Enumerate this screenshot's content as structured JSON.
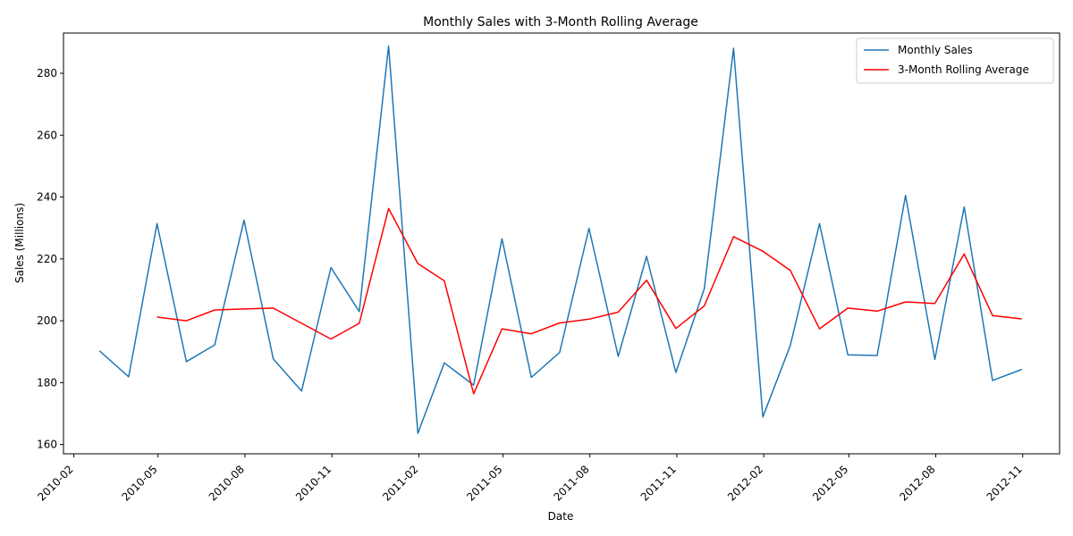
{
  "chart_data": {
    "type": "line",
    "title": "Monthly Sales with 3-Month Rolling Average",
    "xlabel": "Date",
    "ylabel": "Sales (Millions)",
    "xlim": [
      "2010-01-21",
      "2012-12-10"
    ],
    "ylim": [
      157,
      293
    ],
    "y_ticks": [
      160,
      180,
      200,
      220,
      240,
      260,
      280
    ],
    "x_ticks": [
      "2010-02",
      "2010-05",
      "2010-08",
      "2010-11",
      "2011-02",
      "2011-05",
      "2011-08",
      "2011-11",
      "2012-02",
      "2012-05",
      "2012-08",
      "2012-11"
    ],
    "grid": false,
    "legend": {
      "position": "top-right"
    },
    "x": [
      "2010-02-28",
      "2010-03-31",
      "2010-04-30",
      "2010-05-31",
      "2010-06-30",
      "2010-07-31",
      "2010-08-31",
      "2010-09-30",
      "2010-10-31",
      "2010-11-30",
      "2010-12-31",
      "2011-01-31",
      "2011-02-28",
      "2011-03-31",
      "2011-04-30",
      "2011-05-31",
      "2011-06-30",
      "2011-07-31",
      "2011-08-31",
      "2011-09-30",
      "2011-10-31",
      "2011-11-30",
      "2011-12-31",
      "2012-01-31",
      "2012-02-29",
      "2012-03-31",
      "2012-04-30",
      "2012-05-31",
      "2012-06-30",
      "2012-07-31",
      "2012-08-31",
      "2012-09-30",
      "2012-10-31"
    ],
    "series": [
      {
        "name": "Monthly Sales",
        "color": "#1f77b4",
        "values": [
          190.3,
          181.9,
          231.4,
          186.8,
          192.2,
          232.5,
          187.7,
          177.3,
          217.2,
          203.0,
          288.8,
          163.6,
          186.4,
          179.2,
          226.5,
          181.7,
          189.8,
          229.9,
          188.5,
          220.8,
          183.3,
          210.3,
          288.1,
          168.9,
          192.0,
          231.4,
          189.0,
          188.8,
          240.5,
          187.5,
          236.8,
          180.7,
          184.3
        ]
      },
      {
        "name": "3-Month Rolling Average",
        "color": "#ff0000",
        "values": [
          null,
          null,
          201.2,
          200.0,
          203.5,
          203.8,
          204.1,
          199.2,
          194.1,
          199.2,
          236.3,
          218.5,
          212.9,
          176.4,
          197.4,
          195.8,
          199.3,
          200.5,
          202.8,
          213.1,
          197.5,
          204.8,
          227.2,
          222.5,
          216.3,
          197.4,
          204.1,
          203.1,
          206.1,
          205.6,
          221.6,
          201.7,
          200.6
        ]
      }
    ]
  }
}
